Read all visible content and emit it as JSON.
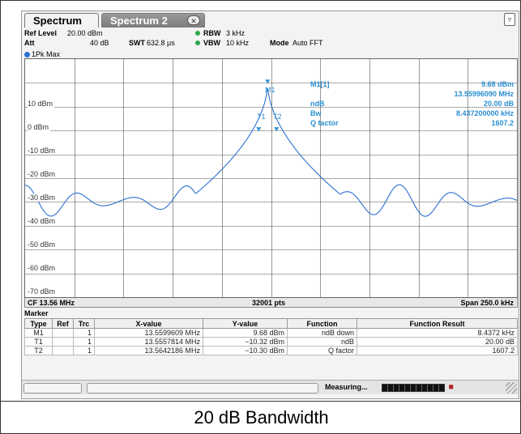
{
  "tabs": [
    {
      "label": "Spectrum",
      "active": true
    },
    {
      "label": "Spectrum 2",
      "active": false
    }
  ],
  "settings": {
    "ref_level_label": "Ref Level",
    "ref_level_value": "20.00 dBm",
    "att_label": "Att",
    "att_value": "40 dB",
    "swt_label": "SWT",
    "swt_value": "632.8 µs",
    "rbw_label": "RBW",
    "rbw_value": "3 kHz",
    "vbw_label": "VBW",
    "vbw_value": "10 kHz",
    "mode_label": "Mode",
    "mode_value": "Auto FFT"
  },
  "trace_label": "1Pk Max",
  "marker_box": {
    "line1_label": "M1[1]",
    "line1_value": "9.68 dBm",
    "line2_value": "13.55996090 MHz",
    "line3_label": "ndB",
    "line3_value": "20.00 dB",
    "line4_label": "Bw",
    "line4_value": "8.437200000 kHz",
    "line5_label": "Q factor",
    "line5_value": "1607.2"
  },
  "marker_labels": {
    "m1": "M1",
    "t1": "T1",
    "t2": "T2"
  },
  "y_ticks": [
    "10 dBm",
    "0 dBm",
    "-10 dBm",
    "-20 dBm",
    "-30 dBm",
    "-40 dBm",
    "-50 dBm",
    "-60 dBm",
    "-70 dBm"
  ],
  "axis": {
    "cf": "CF 13.56 MHz",
    "pts": "32001 pts",
    "span": "Span 250.0 kHz"
  },
  "marker_table": {
    "title": "Marker",
    "headers": [
      "Type",
      "Ref",
      "Trc",
      "X-value",
      "Y-value",
      "Function",
      "Function Result"
    ],
    "rows": [
      {
        "type": "M1",
        "ref": "",
        "trc": "1",
        "x": "13.5599609 MHz",
        "y": "9.68 dBm",
        "func": "ndB down",
        "result": "8.4372 kHz"
      },
      {
        "type": "T1",
        "ref": "",
        "trc": "1",
        "x": "13.5557814 MHz",
        "y": "−10.32 dBm",
        "func": "ndB",
        "result": "20.00 dB"
      },
      {
        "type": "T2",
        "ref": "",
        "trc": "1",
        "x": "13.5642186 MHz",
        "y": "−10.30 dBm",
        "func": "Q factor",
        "result": "1607.2"
      }
    ]
  },
  "status": {
    "measuring": "Measuring..."
  },
  "caption": "20 dB Bandwidth",
  "colors": {
    "trace": "#2b6fd1",
    "marker_text": "#2a8fd1",
    "grid": "#555555"
  }
}
